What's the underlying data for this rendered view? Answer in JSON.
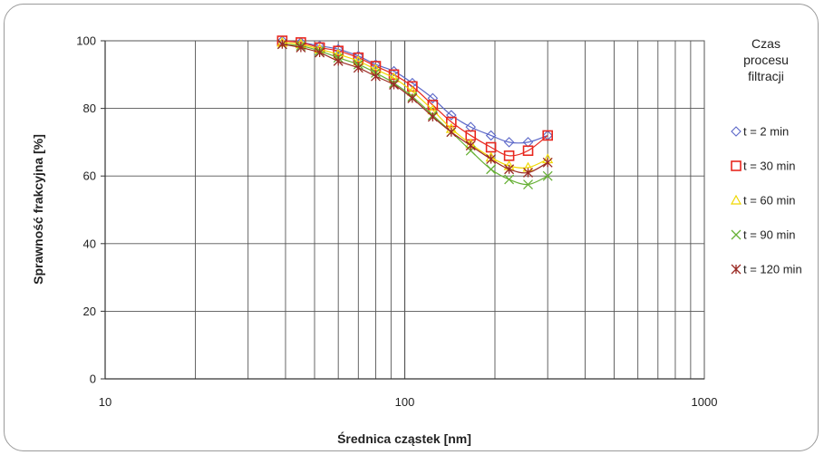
{
  "chart_data": {
    "type": "scatter",
    "title": "",
    "xlabel": "Średnica cząstek [nm]",
    "ylabel": "Sprawność frakcyjna [%]",
    "x_scale": "log",
    "xlim": [
      10,
      1000
    ],
    "ylim": [
      0,
      100
    ],
    "x_ticks": [
      "10",
      "100",
      "1000"
    ],
    "y_ticks": [
      "0",
      "20",
      "40",
      "60",
      "80",
      "100"
    ],
    "grid": true,
    "legend_title": [
      "Czas",
      "procesu",
      "filtracji"
    ],
    "legend_position": "right",
    "x": [
      39,
      45,
      52,
      60,
      70,
      80,
      92,
      106,
      124,
      143,
      166,
      194,
      223,
      258,
      300
    ],
    "series": [
      {
        "name": "t = 2 min",
        "color": "#5b67c8",
        "marker": "diamond",
        "values": [
          100,
          99.5,
          98.5,
          97.5,
          95.5,
          93,
          91,
          87.5,
          83,
          78,
          74.5,
          72,
          70,
          70,
          72
        ]
      },
      {
        "name": "t = 30 min",
        "color": "#e8281f",
        "marker": "square",
        "values": [
          100,
          99.5,
          98,
          97,
          95,
          92.5,
          90,
          86.5,
          81,
          76,
          72,
          68.5,
          66,
          67.5,
          72
        ]
      },
      {
        "name": "t = 60 min",
        "color": "#f0d800",
        "marker": "triangle",
        "values": [
          99.5,
          99,
          97.5,
          96,
          94,
          91.5,
          89,
          85,
          79.5,
          74,
          69.5,
          65.5,
          63,
          62.5,
          65
        ]
      },
      {
        "name": "t = 90 min",
        "color": "#66b035",
        "marker": "x",
        "values": [
          99,
          98.5,
          97,
          95,
          93,
          90.5,
          87.5,
          83.5,
          78,
          73,
          67.5,
          62,
          59,
          57.5,
          60
        ]
      },
      {
        "name": "t = 120 min",
        "color": "#9a2a24",
        "marker": "star",
        "values": [
          99,
          98,
          96.5,
          94,
          92,
          89.5,
          87,
          83,
          77.5,
          73,
          69,
          65,
          62,
          61,
          64
        ]
      }
    ]
  }
}
